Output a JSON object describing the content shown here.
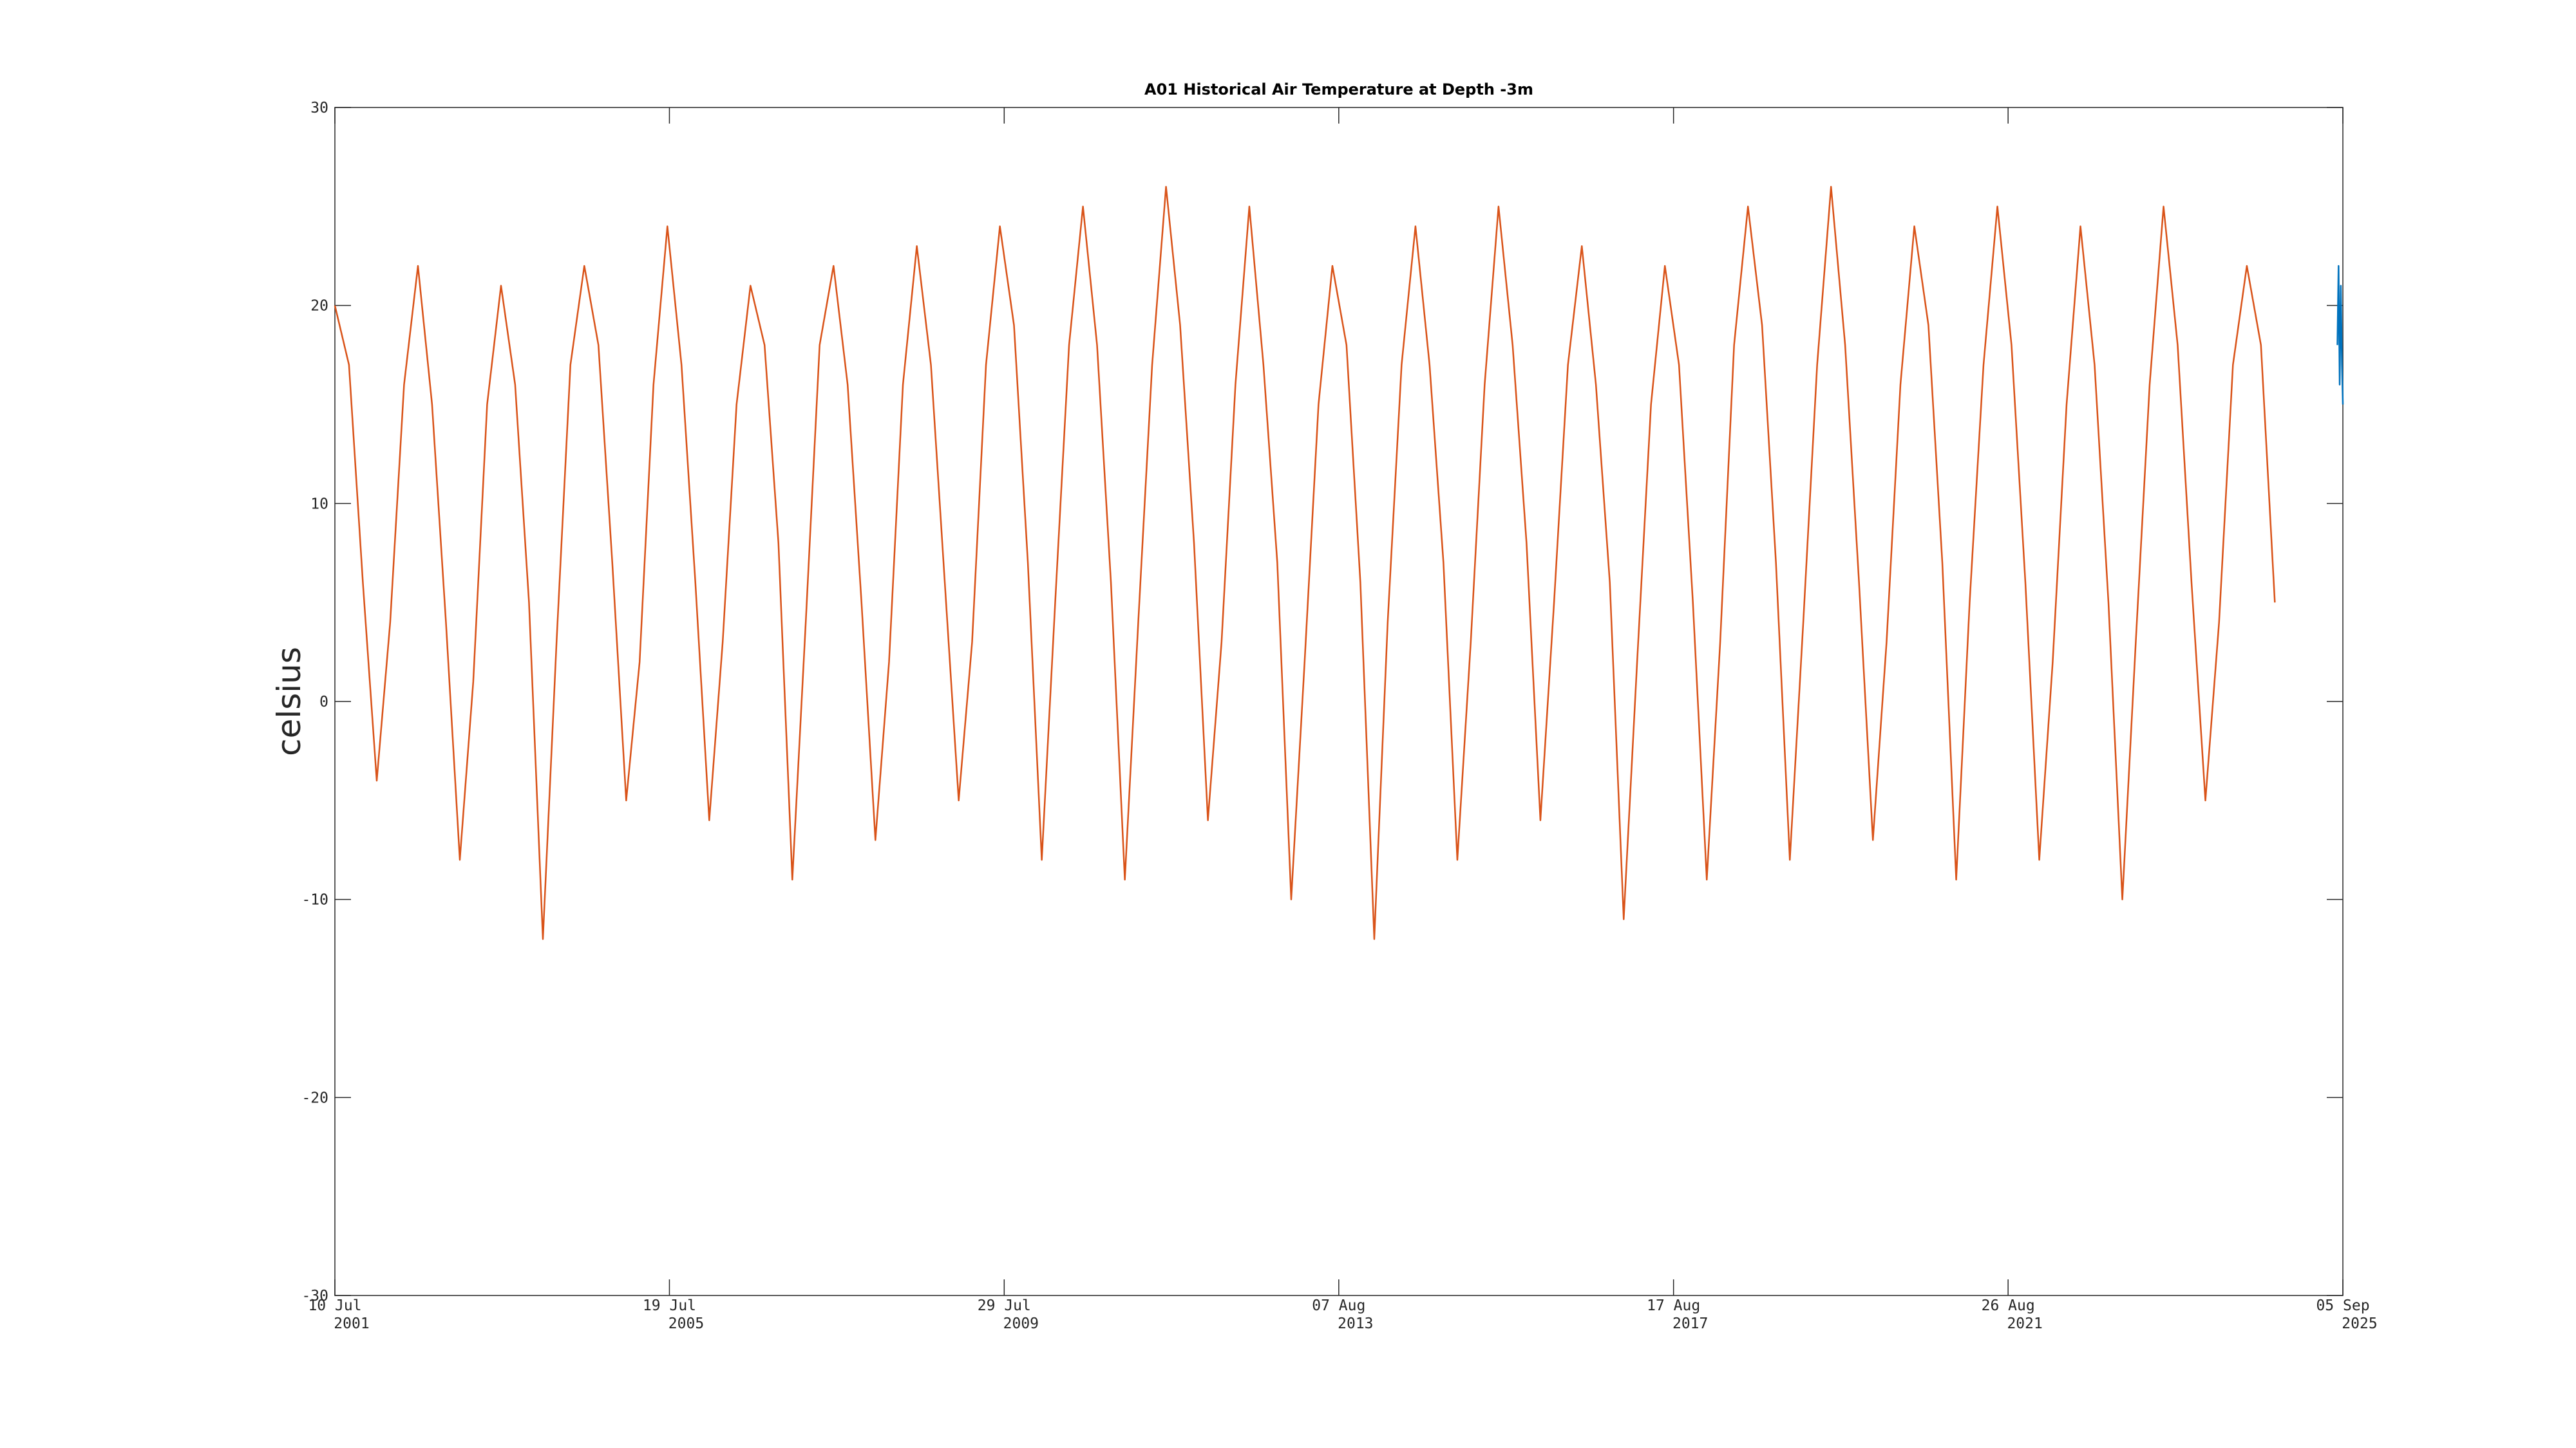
{
  "chart_data": {
    "type": "line",
    "title": "A01 Historical Air Temperature at Depth -3m",
    "y_label": "celsius",
    "xlim": [
      "2001-07-10",
      "2025-09-05"
    ],
    "xticks": [
      {
        "value": "2001-07-10",
        "label": [
          "10 Jul",
          "2001"
        ]
      },
      {
        "value": "2005-07-19",
        "label": [
          "19 Jul",
          "2005"
        ]
      },
      {
        "value": "2009-07-29",
        "label": [
          "29 Jul",
          "2009"
        ]
      },
      {
        "value": "2013-08-07",
        "label": [
          "07 Aug",
          "2013"
        ]
      },
      {
        "value": "2017-08-17",
        "label": [
          "17 Aug",
          "2017"
        ]
      },
      {
        "value": "2021-08-26",
        "label": [
          "26 Aug",
          "2021"
        ]
      },
      {
        "value": "2025-09-05",
        "label": [
          "05 Sep",
          "2025"
        ]
      }
    ],
    "ylim": [
      -30,
      30
    ],
    "yticks": [
      -30,
      -20,
      -10,
      0,
      10,
      20,
      30
    ],
    "grid": false,
    "series": [
      {
        "color": "#D95319",
        "x": [
          "2001-07-10",
          "2001-09-10",
          "2001-11-10",
          "2002-01-10",
          "2002-03-10",
          "2002-05-10",
          "2002-07-10",
          "2002-09-10",
          "2002-11-10",
          "2003-01-10",
          "2003-03-10",
          "2003-05-10",
          "2003-07-10",
          "2003-09-10",
          "2003-11-10",
          "2004-01-10",
          "2004-03-10",
          "2004-05-10",
          "2004-07-10",
          "2004-09-10",
          "2004-11-10",
          "2005-01-10",
          "2005-03-10",
          "2005-05-10",
          "2005-07-10",
          "2005-09-10",
          "2005-11-10",
          "2006-01-10",
          "2006-03-10",
          "2006-05-10",
          "2006-07-10",
          "2006-09-10",
          "2006-11-10",
          "2007-01-10",
          "2007-03-10",
          "2007-05-10",
          "2007-07-10",
          "2007-09-10",
          "2007-11-10",
          "2008-01-10",
          "2008-03-10",
          "2008-05-10",
          "2008-07-10",
          "2008-09-10",
          "2008-11-10",
          "2009-01-10",
          "2009-03-10",
          "2009-05-10",
          "2009-07-10",
          "2009-09-10",
          "2009-11-10",
          "2010-01-10",
          "2010-03-10",
          "2010-05-10",
          "2010-07-10",
          "2010-09-10",
          "2010-11-10",
          "2011-01-10",
          "2011-03-10",
          "2011-05-10",
          "2011-07-10",
          "2011-09-10",
          "2011-11-10",
          "2012-01-10",
          "2012-03-10",
          "2012-05-10",
          "2012-07-10",
          "2012-09-10",
          "2012-11-10",
          "2013-01-10",
          "2013-03-10",
          "2013-05-10",
          "2013-07-10",
          "2013-09-10",
          "2013-11-10",
          "2014-01-10",
          "2014-03-10",
          "2014-05-10",
          "2014-07-10",
          "2014-09-10",
          "2014-11-10",
          "2015-01-10",
          "2015-03-10",
          "2015-05-10",
          "2015-07-10",
          "2015-09-10",
          "2015-11-10",
          "2016-01-10",
          "2016-03-10",
          "2016-05-10",
          "2016-07-10",
          "2016-09-10",
          "2016-11-10",
          "2017-01-10",
          "2017-03-10",
          "2017-05-10",
          "2017-07-10",
          "2017-09-10",
          "2017-11-10",
          "2018-01-10",
          "2018-03-10",
          "2018-05-10",
          "2018-07-10",
          "2018-09-10",
          "2018-11-10",
          "2019-01-10",
          "2019-03-10",
          "2019-05-10",
          "2019-07-10",
          "2019-09-10",
          "2019-11-10",
          "2020-01-10",
          "2020-03-10",
          "2020-05-10",
          "2020-07-10",
          "2020-09-10",
          "2020-11-10",
          "2021-01-10",
          "2021-03-10",
          "2021-05-10",
          "2021-07-10",
          "2021-09-10",
          "2021-11-10",
          "2022-01-10",
          "2022-03-10",
          "2022-05-10",
          "2022-07-10",
          "2022-09-10",
          "2022-11-10",
          "2023-01-10",
          "2023-03-10",
          "2023-05-10",
          "2023-07-10",
          "2023-09-10",
          "2023-11-10",
          "2024-01-10",
          "2024-03-10",
          "2024-05-10",
          "2024-07-10",
          "2024-09-10",
          "2024-11-10"
        ],
        "values": [
          20,
          17,
          6,
          -4,
          4,
          16,
          22,
          15,
          4,
          -8,
          1,
          15,
          21,
          16,
          5,
          -12,
          3,
          17,
          22,
          18,
          7,
          -5,
          2,
          16,
          24,
          17,
          6,
          -6,
          3,
          15,
          21,
          18,
          8,
          -9,
          4,
          18,
          22,
          16,
          5,
          -7,
          2,
          16,
          23,
          17,
          6,
          -5,
          3,
          17,
          24,
          19,
          7,
          -8,
          5,
          18,
          25,
          18,
          6,
          -9,
          4,
          17,
          26,
          19,
          8,
          -6,
          3,
          16,
          25,
          17,
          7,
          -10,
          2,
          15,
          22,
          18,
          6,
          -12,
          4,
          17,
          24,
          17,
          7,
          -8,
          3,
          16,
          25,
          18,
          8,
          -6,
          5,
          17,
          23,
          16,
          6,
          -11,
          2,
          15,
          22,
          17,
          5,
          -9,
          3,
          18,
          25,
          19,
          7,
          -8,
          4,
          17,
          26,
          18,
          6,
          -7,
          3,
          16,
          24,
          19,
          7,
          -9,
          5,
          17,
          25,
          18,
          6,
          -8,
          2,
          15,
          24,
          17,
          5,
          -10,
          3,
          16,
          25,
          18,
          6,
          -5,
          4,
          17,
          22,
          18,
          5
        ]
      },
      {
        "color": "#0072BD",
        "x": [
          "2025-08-12",
          "2025-08-17",
          "2025-08-22",
          "2025-08-27",
          "2025-09-01",
          "2025-09-05"
        ],
        "values": [
          18,
          22,
          16,
          21,
          17,
          15
        ]
      }
    ]
  }
}
